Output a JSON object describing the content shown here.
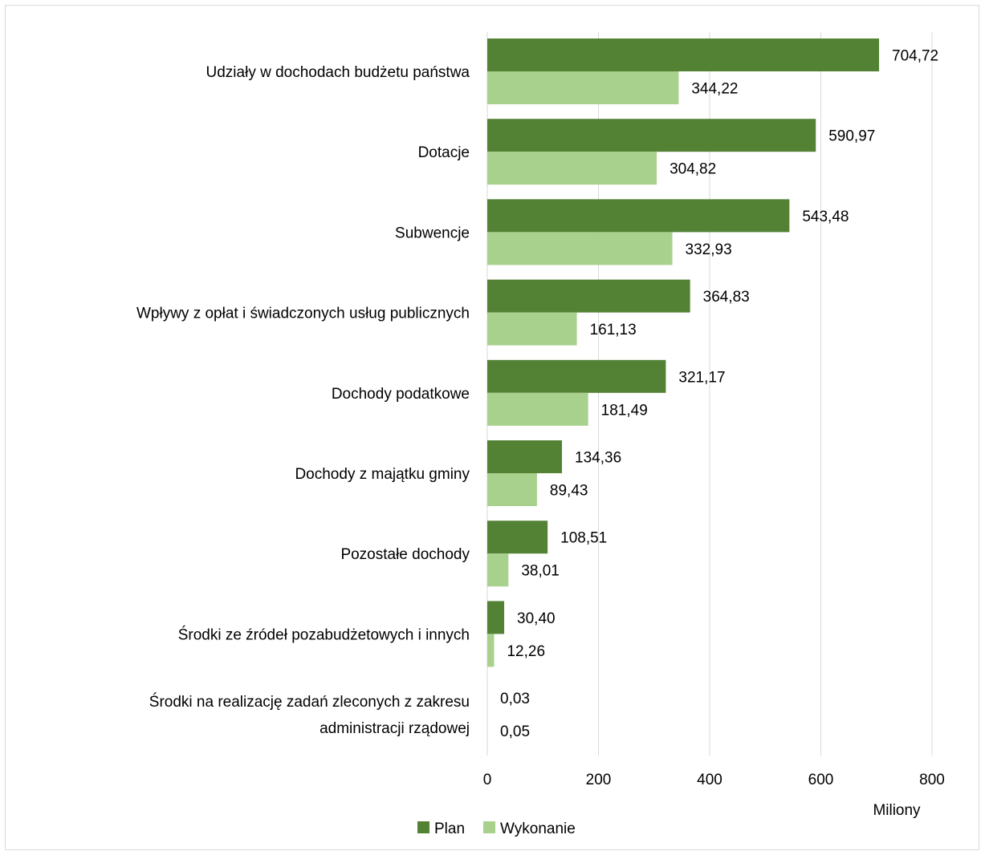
{
  "chart_data": {
    "type": "bar",
    "orientation": "horizontal",
    "categories": [
      [
        "Udziały w dochodach budżetu państwa"
      ],
      [
        "Dotacje"
      ],
      [
        "Subwencje"
      ],
      [
        "Wpływy z opłat i świadczonych usług publicznych"
      ],
      [
        "Dochody podatkowe"
      ],
      [
        "Dochody z majątku gminy"
      ],
      [
        "Pozostałe dochody"
      ],
      [
        "Środki ze źródeł pozabudżetowych i innych"
      ],
      [
        "Środki na realizację zadań zleconych z zakresu",
        "administracji rządowej"
      ]
    ],
    "series": [
      {
        "name": "Plan",
        "color": "#548235",
        "values": [
          704.72,
          590.97,
          543.48,
          364.83,
          321.17,
          134.36,
          108.51,
          30.4,
          0.03
        ],
        "labels": [
          "704,72",
          "590,97",
          "543,48",
          "364,83",
          "321,17",
          "134,36",
          "108,51",
          "30,40",
          "0,03"
        ]
      },
      {
        "name": "Wykonanie",
        "color": "#a9d18e",
        "values": [
          344.22,
          304.82,
          332.93,
          161.13,
          181.49,
          89.43,
          38.01,
          12.26,
          0.05
        ],
        "labels": [
          "344,22",
          "304,82",
          "332,93",
          "161,13",
          "181,49",
          "89,43",
          "38,01",
          "12,26",
          "0,05"
        ]
      }
    ],
    "xlim": [
      0,
      800
    ],
    "xticks": [
      0,
      200,
      400,
      600,
      800
    ],
    "xtick_labels": [
      "0",
      "200",
      "400",
      "600",
      "800"
    ],
    "unit_label": "Miliony",
    "gridlines": "vertical",
    "gridline_color": "#d9d9d9",
    "legend_position": "bottom"
  }
}
